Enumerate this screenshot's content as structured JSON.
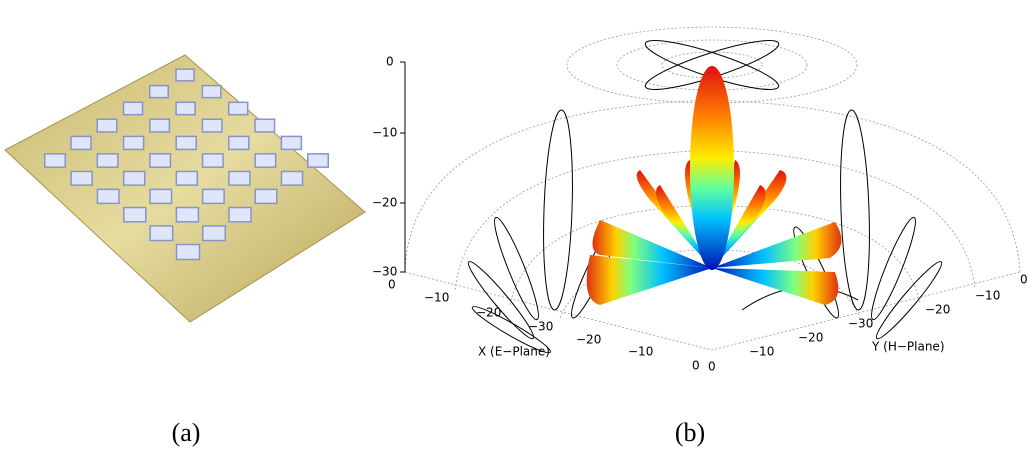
{
  "panel_a": {
    "caption": "(a)"
  },
  "panel_b": {
    "caption": "(b)",
    "z_ticks": [
      "0",
      "−10",
      "−20",
      "−30"
    ],
    "x_axis": {
      "label": "X (E−Plane)",
      "ticks": [
        "0",
        "−10",
        "−20",
        "−30",
        "−20",
        "−10",
        "0"
      ]
    },
    "y_axis": {
      "label": "Y (H−Plane)",
      "ticks": [
        "0",
        "−10",
        "−20",
        "−30",
        "−20",
        "−10",
        "0"
      ]
    }
  }
}
